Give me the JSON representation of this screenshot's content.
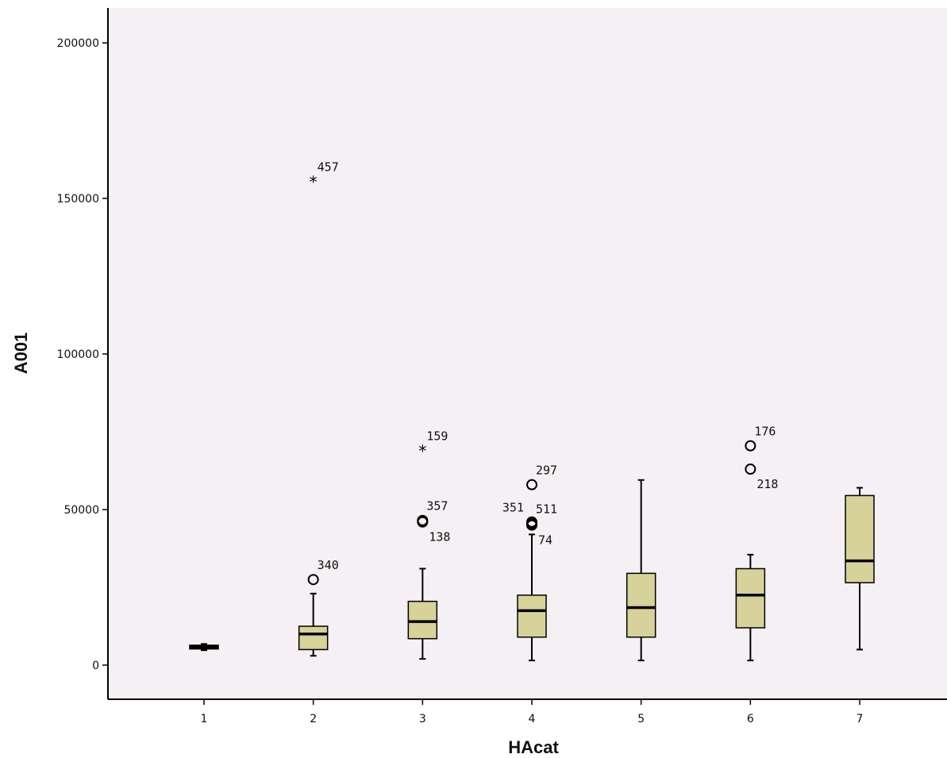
{
  "chart_data": {
    "type": "boxplot",
    "title": "",
    "xlabel": "HAcat",
    "ylabel": "A001",
    "ylim": [
      -11000,
      212000
    ],
    "yticks": [
      0,
      50000,
      100000,
      150000,
      200000
    ],
    "ytick_labels": [
      "0",
      "50000",
      "100000",
      "150000",
      "200000"
    ],
    "categories": [
      "1",
      "2",
      "3",
      "4",
      "5",
      "6",
      "7"
    ],
    "colors": {
      "plot_bg": "#F4F0F4",
      "box_fill": "#D7D19A",
      "stroke": "#000000"
    },
    "boxes": [
      {
        "category": "1",
        "whisker_low": 4800,
        "q1": 5200,
        "median": 5800,
        "q3": 6400,
        "whisker_high": 6800
      },
      {
        "category": "2",
        "whisker_low": 3000,
        "q1": 5000,
        "median": 10000,
        "q3": 12500,
        "whisker_high": 23000
      },
      {
        "category": "3",
        "whisker_low": 2000,
        "q1": 8500,
        "median": 14000,
        "q3": 20500,
        "whisker_high": 31000
      },
      {
        "category": "4",
        "whisker_low": 1500,
        "q1": 9000,
        "median": 17500,
        "q3": 22500,
        "whisker_high": 42000
      },
      {
        "category": "5",
        "whisker_low": 1500,
        "q1": 9000,
        "median": 18500,
        "q3": 29500,
        "whisker_high": 59500
      },
      {
        "category": "6",
        "whisker_low": 1500,
        "q1": 12000,
        "median": 22500,
        "q3": 31000,
        "whisker_high": 35500
      },
      {
        "category": "7",
        "whisker_low": 5000,
        "q1": 26500,
        "median": 33500,
        "q3": 54500,
        "whisker_high": 57000
      }
    ],
    "outliers": [
      {
        "category": "2",
        "value": 155500,
        "marker": "extreme",
        "label": "457",
        "label_pos": "above-right"
      },
      {
        "category": "2",
        "value": 27500,
        "marker": "circle",
        "label": "340",
        "label_pos": "above-right"
      },
      {
        "category": "3",
        "value": 69000,
        "marker": "extreme",
        "label": "159",
        "label_pos": "above-right"
      },
      {
        "category": "3",
        "value": 46500,
        "marker": "circle",
        "label": "357",
        "label_pos": "above-right"
      },
      {
        "category": "3",
        "value": 46000,
        "marker": "circle",
        "label": "138",
        "label_pos": "below-right"
      },
      {
        "category": "4",
        "value": 58000,
        "marker": "circle",
        "label": "297",
        "label_pos": "above-right"
      },
      {
        "category": "4",
        "value": 46000,
        "marker": "circle",
        "label": "351",
        "label_pos": "above-left"
      },
      {
        "category": "4",
        "value": 45500,
        "marker": "circle",
        "label": "511",
        "label_pos": "above-right"
      },
      {
        "category": "4",
        "value": 45000,
        "marker": "circle",
        "label": "74",
        "label_pos": "below-right"
      },
      {
        "category": "6",
        "value": 70500,
        "marker": "circle",
        "label": "176",
        "label_pos": "above-right"
      },
      {
        "category": "6",
        "value": 63000,
        "marker": "circle",
        "label": "218",
        "label_pos": "below-right"
      }
    ]
  }
}
